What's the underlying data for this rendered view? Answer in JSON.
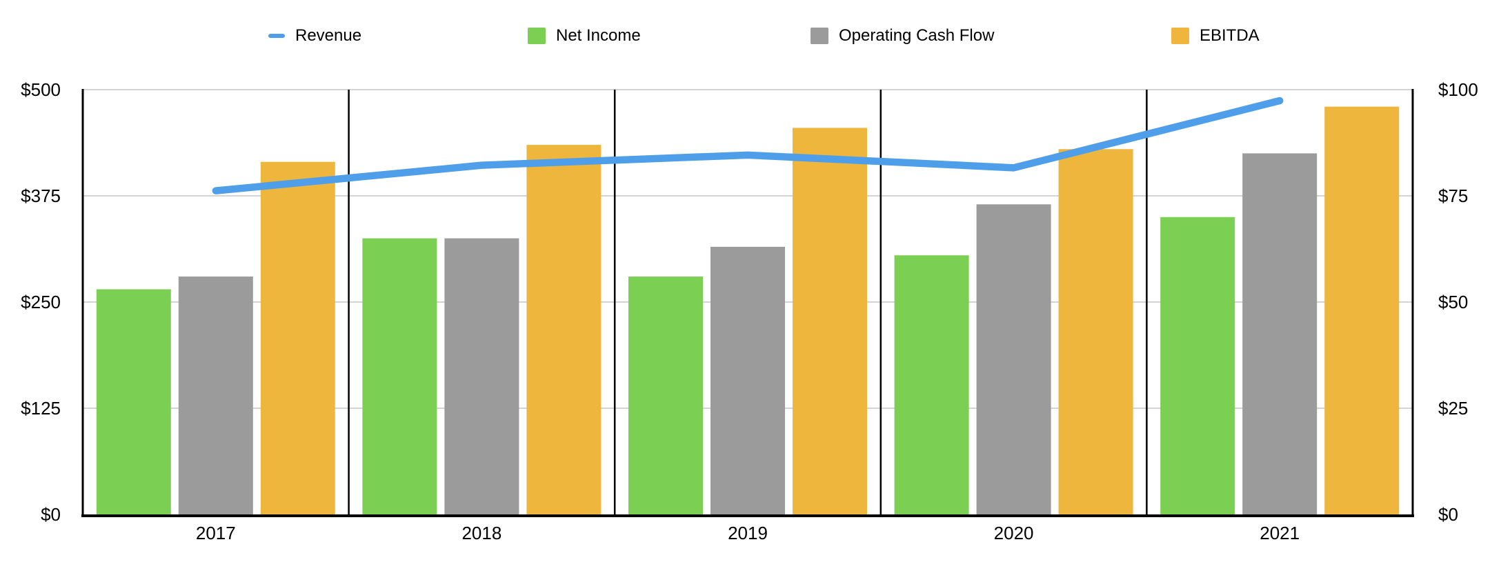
{
  "chart_data": {
    "type": "combo-line-bar",
    "title": "",
    "categories": [
      "2017",
      "2018",
      "2019",
      "2020",
      "2021"
    ],
    "series": [
      {
        "name": "Revenue",
        "type": "line",
        "axis": "left",
        "color": "#4F9EEA",
        "values": [
          381,
          411,
          423,
          408,
          487
        ]
      },
      {
        "name": "Net Income",
        "type": "bar",
        "axis": "right",
        "color": "#7BD053",
        "values": [
          53,
          65,
          56,
          61,
          70
        ]
      },
      {
        "name": "Operating Cash Flow",
        "type": "bar",
        "axis": "right",
        "color": "#9B9B9B",
        "values": [
          56,
          65,
          63,
          73,
          85
        ]
      },
      {
        "name": "EBITDA",
        "type": "bar",
        "axis": "right",
        "color": "#EEB63D",
        "values": [
          83,
          87,
          91,
          86,
          96
        ]
      }
    ],
    "left_axis": {
      "min": 0,
      "max": 500,
      "tick_values": [
        0,
        125,
        250,
        375,
        500
      ],
      "tick_labels": [
        "$0",
        "$125",
        "$250",
        "$375",
        "$500"
      ]
    },
    "right_axis": {
      "min": 0,
      "max": 100,
      "tick_values": [
        0,
        25,
        50,
        75,
        100
      ],
      "tick_labels": [
        "$0",
        "$25",
        "$50",
        "$75",
        "$100"
      ]
    },
    "grid": true,
    "legend_position": "top"
  },
  "colors": {
    "background": "#FFFFFF",
    "gridline": "#CDCDCD",
    "separator": "#000000",
    "axis": "#000000",
    "text": "#000000"
  }
}
